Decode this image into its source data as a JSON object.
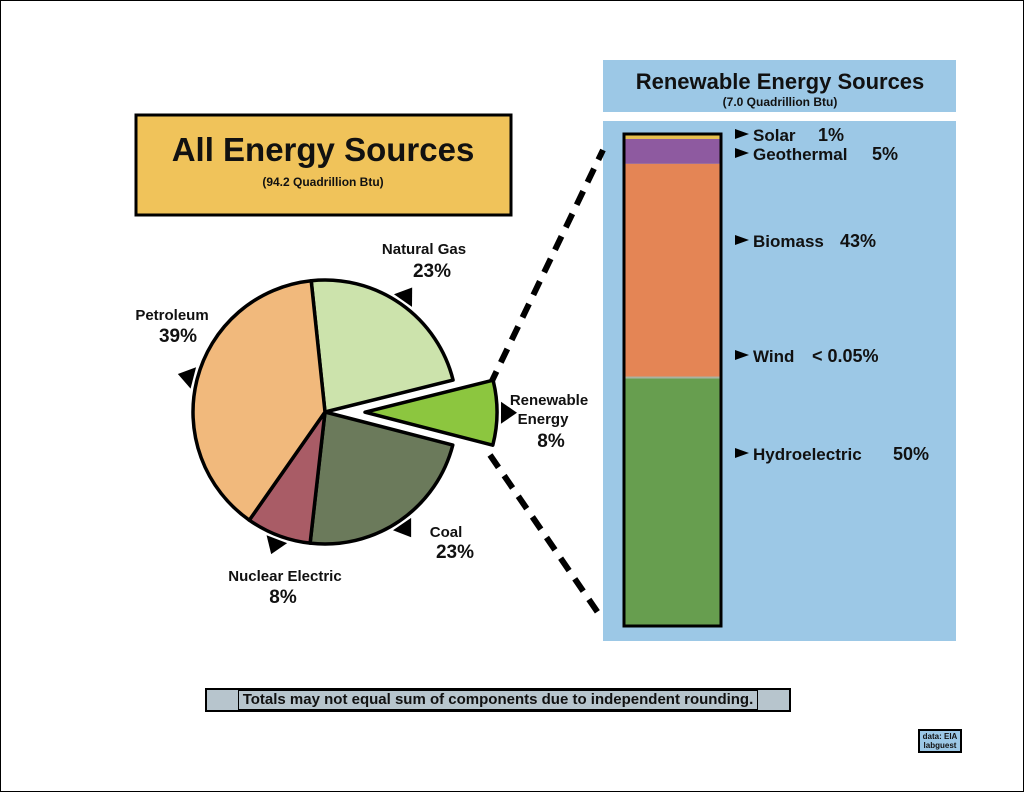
{
  "chart_data": [
    {
      "type": "pie",
      "title": "All Energy Sources",
      "subtitle": "(94.2 Quadrillion Btu)",
      "categories": [
        "Natural Gas",
        "Renewable Energy",
        "Coal",
        "Nuclear Electric",
        "Petroleum"
      ],
      "values": [
        23,
        8,
        23,
        8,
        39
      ],
      "value_labels": [
        "23%",
        "8%",
        "23%",
        "8%",
        "39%"
      ],
      "exploded": "Renewable Energy",
      "colors": [
        "#cce3ac",
        "#8cc63f",
        "#6b7a5b",
        "#a95c66",
        "#f1b97c"
      ]
    },
    {
      "type": "bar",
      "stacked": true,
      "title": "Renewable Energy Sources",
      "subtitle": "(7.0 Quadrillion Btu)",
      "series": [
        {
          "name": "Hydroelectric",
          "value": 50,
          "label": "50%",
          "color": "#679e4f"
        },
        {
          "name": "Wind",
          "value": 0.05,
          "label": "< 0.05%",
          "color": "#a8b3a0"
        },
        {
          "name": "Biomass",
          "value": 43,
          "label": "43%",
          "color": "#e48555"
        },
        {
          "name": "Geothermal",
          "value": 5,
          "label": "5%",
          "color": "#8e5aa0"
        },
        {
          "name": "Solar",
          "value": 1,
          "label": "1%",
          "color": "#e6bf4d"
        }
      ]
    }
  ],
  "colors": {
    "pie_title_box": "#f0c35a",
    "renewable_panel": "#9cc8e6",
    "note_box": "#b7c5cd"
  },
  "footnote": "Totals may not equal sum of components due to independent rounding.",
  "credit": {
    "line1": "data: EIA",
    "line2": "labguest"
  }
}
